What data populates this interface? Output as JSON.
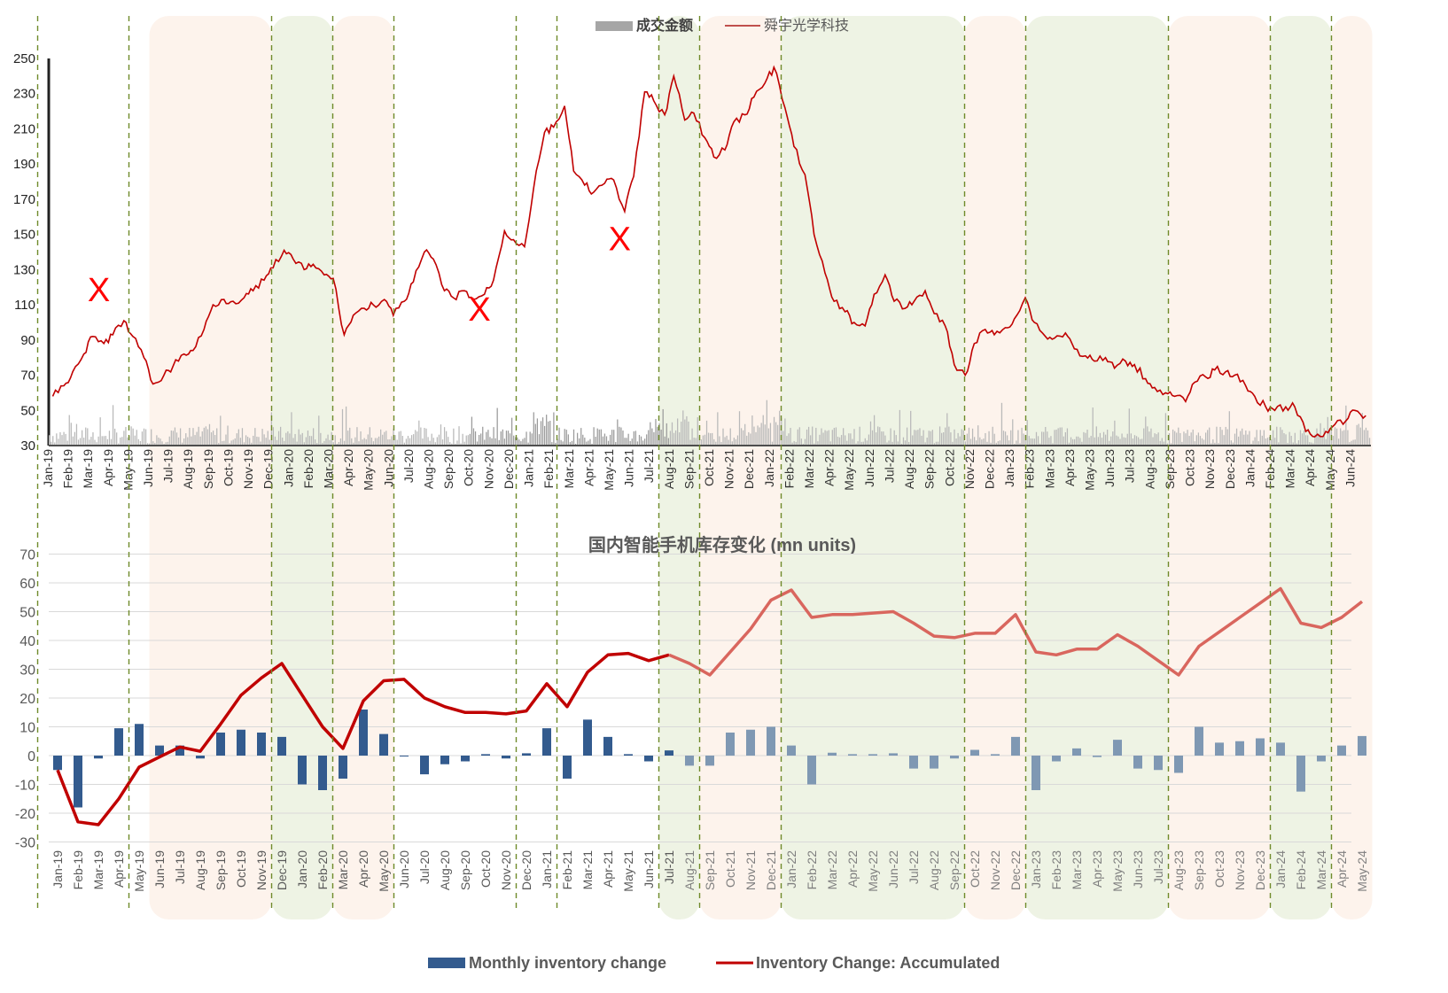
{
  "chart_data": [
    {
      "type": "line",
      "legend": {
        "placement": "top-center",
        "entries": [
          {
            "label": "成交金额",
            "kind": "bar",
            "color": "#a6a6a6"
          },
          {
            "label": "舜宇光学科技",
            "kind": "line",
            "color": "#c00000"
          }
        ]
      },
      "y_ticks": [
        30,
        50,
        70,
        90,
        110,
        130,
        150,
        170,
        190,
        210,
        230,
        250
      ],
      "ylim": [
        30,
        250
      ],
      "x_ticks": [
        "Jan-19",
        "Feb-19",
        "Mar-19",
        "Apr-19",
        "May-19",
        "Jun-19",
        "Jul-19",
        "Aug-19",
        "Sep-19",
        "Oct-19",
        "Nov-19",
        "Dec-19",
        "Jan-20",
        "Feb-20",
        "Mar-20",
        "Apr-20",
        "May-20",
        "Jun-20",
        "Jul-20",
        "Aug-20",
        "Sep-20",
        "Oct-20",
        "Nov-20",
        "Dec-20",
        "Jan-21",
        "Feb-21",
        "Mar-21",
        "Apr-21",
        "May-21",
        "Jun-21",
        "Jul-21",
        "Aug-21",
        "Sep-21",
        "Oct-21",
        "Nov-21",
        "Dec-21",
        "Jan-22",
        "Feb-22",
        "Mar-22",
        "Apr-22",
        "May-22",
        "Jun-22",
        "Jul-22",
        "Aug-22",
        "Sep-22",
        "Oct-22",
        "Nov-22",
        "Dec-22",
        "Jan-23",
        "Feb-23",
        "Mar-23",
        "Apr-23",
        "May-23",
        "Jun-23",
        "Jul-23",
        "Aug-23",
        "Sep-23",
        "Oct-23",
        "Nov-23",
        "Dec-23",
        "Jan-24",
        "Feb-24",
        "Mar-24",
        "Apr-24",
        "May-24",
        "Jun-24"
      ],
      "price_series": {
        "name": "舜宇光学科技",
        "color": "#c00000",
        "points": [
          [
            "Jan-19",
            58
          ],
          [
            "Jan-19",
            64
          ],
          [
            "Feb-19",
            72
          ],
          [
            "Feb-19",
            82
          ],
          [
            "Mar-19",
            92
          ],
          [
            "Mar-19",
            88
          ],
          [
            "Apr-19",
            93
          ],
          [
            "Apr-19",
            101
          ],
          [
            "May-19",
            92
          ],
          [
            "May-19",
            80
          ],
          [
            "Jun-19",
            65
          ],
          [
            "Jun-19",
            70
          ],
          [
            "Jul-19",
            75
          ],
          [
            "Jul-19",
            82
          ],
          [
            "Aug-19",
            84
          ],
          [
            "Aug-19",
            96
          ],
          [
            "Sep-19",
            110
          ],
          [
            "Sep-19",
            113
          ],
          [
            "Oct-19",
            112
          ],
          [
            "Oct-19",
            114
          ],
          [
            "Nov-19",
            118
          ],
          [
            "Nov-19",
            124
          ],
          [
            "Dec-19",
            131
          ],
          [
            "Dec-19",
            141
          ],
          [
            "Jan-20",
            136
          ],
          [
            "Jan-20",
            130
          ],
          [
            "Feb-20",
            133
          ],
          [
            "Feb-20",
            127
          ],
          [
            "Mar-20",
            125
          ],
          [
            "Mar-20",
            93
          ],
          [
            "Apr-20",
            104
          ],
          [
            "Apr-20",
            108
          ],
          [
            "May-20",
            110
          ],
          [
            "May-20",
            113
          ],
          [
            "Jun-20",
            104
          ],
          [
            "Jun-20",
            112
          ],
          [
            "Jul-20",
            123
          ],
          [
            "Jul-20",
            140
          ],
          [
            "Aug-20",
            136
          ],
          [
            "Aug-20",
            118
          ],
          [
            "Sep-20",
            114
          ],
          [
            "Sep-20",
            118
          ],
          [
            "Oct-20",
            113
          ],
          [
            "Oct-20",
            116
          ],
          [
            "Nov-20",
            124
          ],
          [
            "Nov-20",
            152
          ],
          [
            "Dec-20",
            147
          ],
          [
            "Dec-20",
            143
          ],
          [
            "Jan-21",
            176
          ],
          [
            "Jan-21",
            208
          ],
          [
            "Feb-21",
            211
          ],
          [
            "Feb-21",
            223
          ],
          [
            "Mar-21",
            186
          ],
          [
            "Mar-21",
            178
          ],
          [
            "Apr-21",
            174
          ],
          [
            "Apr-21",
            179
          ],
          [
            "May-21",
            181
          ],
          [
            "May-21",
            163
          ],
          [
            "Jun-21",
            183
          ],
          [
            "Jun-21",
            231
          ],
          [
            "Jul-21",
            226
          ],
          [
            "Jul-21",
            218
          ],
          [
            "Aug-21",
            240
          ],
          [
            "Aug-21",
            215
          ],
          [
            "Sep-21",
            219
          ],
          [
            "Sep-21",
            205
          ],
          [
            "Oct-21",
            194
          ],
          [
            "Oct-21",
            198
          ],
          [
            "Nov-21",
            214
          ],
          [
            "Nov-21",
            218
          ],
          [
            "Dec-21",
            228
          ],
          [
            "Dec-21",
            236
          ],
          [
            "Jan-22",
            245
          ],
          [
            "Jan-22",
            222
          ],
          [
            "Feb-22",
            200
          ],
          [
            "Feb-22",
            184
          ],
          [
            "Mar-22",
            150
          ],
          [
            "Mar-22",
            128
          ],
          [
            "Apr-22",
            112
          ],
          [
            "Apr-22",
            106
          ],
          [
            "May-22",
            100
          ],
          [
            "May-22",
            98
          ],
          [
            "Jun-22",
            116
          ],
          [
            "Jun-22",
            127
          ],
          [
            "Jul-22",
            112
          ],
          [
            "Jul-22",
            108
          ],
          [
            "Aug-22",
            112
          ],
          [
            "Aug-22",
            118
          ],
          [
            "Sep-22",
            105
          ],
          [
            "Sep-22",
            98
          ],
          [
            "Oct-22",
            76
          ],
          [
            "Oct-22",
            70
          ],
          [
            "Nov-22",
            88
          ],
          [
            "Nov-22",
            96
          ],
          [
            "Dec-22",
            93
          ],
          [
            "Dec-22",
            97
          ],
          [
            "Jan-23",
            102
          ],
          [
            "Jan-23",
            114
          ],
          [
            "Feb-23",
            100
          ],
          [
            "Feb-23",
            92
          ],
          [
            "Mar-23",
            91
          ],
          [
            "Mar-23",
            94
          ],
          [
            "Apr-23",
            85
          ],
          [
            "Apr-23",
            81
          ],
          [
            "May-23",
            78
          ],
          [
            "May-23",
            80
          ],
          [
            "Jun-23",
            74
          ],
          [
            "Jun-23",
            78
          ],
          [
            "Jul-23",
            76
          ],
          [
            "Jul-23",
            68
          ],
          [
            "Aug-23",
            63
          ],
          [
            "Aug-23",
            60
          ],
          [
            "Sep-23",
            58
          ],
          [
            "Sep-23",
            55
          ],
          [
            "Oct-23",
            66
          ],
          [
            "Oct-23",
            69
          ],
          [
            "Nov-23",
            73
          ],
          [
            "Nov-23",
            72
          ],
          [
            "Dec-23",
            70
          ],
          [
            "Dec-23",
            64
          ],
          [
            "Jan-24",
            58
          ],
          [
            "Jan-24",
            52
          ],
          [
            "Feb-24",
            50
          ],
          [
            "Feb-24",
            52
          ],
          [
            "Mar-24",
            52
          ],
          [
            "Mar-24",
            38
          ],
          [
            "Apr-24",
            35
          ],
          [
            "Apr-24",
            38
          ],
          [
            "May-24",
            42
          ],
          [
            "May-24",
            44
          ],
          [
            "Jun-24",
            50
          ],
          [
            "Jun-24",
            47
          ]
        ]
      },
      "volume_series": {
        "name": "成交金额",
        "color": "#a6a6a6",
        "typical_height": [
          30,
          46
        ],
        "note_peak_months": [
          "Jan-21",
          "Jul-21",
          "Aug-21",
          "Dec-21",
          "Jan-22"
        ]
      },
      "annotations": [
        {
          "text": "X",
          "x": "Mar-19",
          "y": 112,
          "color": "#ff0000"
        },
        {
          "text": "X",
          "x": "Oct-20",
          "y": 101,
          "color": "#ff0000"
        },
        {
          "text": "X",
          "x": "May-21",
          "y": 141,
          "color": "#ff0000"
        }
      ]
    },
    {
      "type": "bar",
      "title": "国内智能手机库存变化 (mn units)",
      "ylim": [
        -30,
        70
      ],
      "y_ticks": [
        -30,
        -20,
        -10,
        0,
        10,
        20,
        30,
        40,
        50,
        60,
        70
      ],
      "categories": [
        "Jan-19",
        "Feb-19",
        "Mar-19",
        "Apr-19",
        "May-19",
        "Jun-19",
        "Jul-19",
        "Aug-19",
        "Sep-19",
        "Oct-19",
        "Nov-19",
        "Dec-19",
        "Jan-20",
        "Feb-20",
        "Mar-20",
        "Apr-20",
        "May-20",
        "Jun-20",
        "Jul-20",
        "Aug-20",
        "Sep-20",
        "Oct-20",
        "Nov-20",
        "Dec-20",
        "Jan-21",
        "Feb-21",
        "Mar-21",
        "Apr-21",
        "May-21",
        "Jun-21",
        "Jul-21",
        "Aug-21",
        "Sep-21",
        "Oct-21",
        "Nov-21",
        "Dec-21",
        "Jan-22",
        "Feb-22",
        "Mar-22",
        "Apr-22",
        "May-22",
        "Jun-22",
        "Jul-22",
        "Aug-22",
        "Sep-22",
        "Oct-22",
        "Nov-22",
        "Dec-22",
        "Jan-23",
        "Feb-23",
        "Mar-23",
        "Apr-23",
        "May-23",
        "Jun-23",
        "Jul-23",
        "Aug-23",
        "Sep-23",
        "Oct-23",
        "Nov-23",
        "Dec-23",
        "Jan-24",
        "Feb-24",
        "Mar-24",
        "Apr-24",
        "May-24"
      ],
      "series": [
        {
          "name": "Monthly inventory change",
          "color": "#335b8e",
          "values": [
            -5,
            -18,
            -1,
            9.5,
            11,
            3.5,
            3.5,
            -1,
            8,
            9,
            8,
            6.5,
            -10,
            -12,
            -8,
            16,
            7.5,
            0,
            -6.5,
            -3,
            -2,
            0.5,
            -1,
            0.8,
            9.5,
            -8,
            12.5,
            6.5,
            0.5,
            -2,
            1.8,
            -3.5,
            -3.5,
            8,
            9,
            10,
            3.5,
            -10,
            1,
            0.5,
            0.5,
            0.8,
            -4.5,
            -4.5,
            -1,
            2,
            0.5,
            6.5,
            -12,
            -2,
            2.5,
            -0.5,
            5.5,
            -4.5,
            -5,
            -6,
            10,
            4.5,
            5,
            6,
            4.5,
            -12.5,
            -2,
            3.5,
            6.8
          ]
        },
        {
          "name": "Inventory Change: Accumulated",
          "color": "#c00000",
          "values": [
            -5,
            -23,
            -24,
            -15,
            -4,
            -0.5,
            3,
            1.5,
            11,
            21,
            27,
            32,
            21,
            10,
            2.5,
            19,
            26,
            26.5,
            20,
            17,
            15,
            15,
            14.5,
            15.5,
            25,
            17,
            29,
            35,
            35.5,
            33,
            35,
            32,
            28,
            36,
            44,
            54,
            57.5,
            48,
            49,
            49,
            49.5,
            50,
            46,
            41.5,
            41,
            42.5,
            42.5,
            49,
            36,
            35,
            37,
            37,
            42,
            38,
            33,
            28,
            38,
            43,
            48,
            53,
            58,
            46,
            44.5,
            48,
            53.5
          ]
        }
      ],
      "shaded_regions": [
        {
          "from": "Jun-19",
          "to": "Dec-19",
          "color": "#fdf3ec"
        },
        {
          "from": "Dec-19",
          "to": "Mar-20",
          "color": "#eef3e4"
        },
        {
          "from": "Mar-20",
          "to": "Jun-20",
          "color": "#fdf3ec"
        },
        {
          "from": "Jul-21",
          "to": "Sep-21",
          "color": "#eef3e4"
        },
        {
          "from": "Sep-21",
          "to": "Jan-22",
          "color": "#fdf3ec"
        },
        {
          "from": "Jan-22",
          "to": "Oct-22",
          "color": "#eef3e4"
        },
        {
          "from": "Oct-22",
          "to": "Jan-23",
          "color": "#fdf3ec"
        },
        {
          "from": "Jan-23",
          "to": "Aug-23",
          "color": "#eef3e4"
        },
        {
          "from": "Aug-23",
          "to": "Jan-24",
          "color": "#fdf3ec"
        },
        {
          "from": "Jan-24",
          "to": "Apr-24",
          "color": "#eef3e4"
        },
        {
          "from": "Apr-24",
          "to": "May-24",
          "color": "#fdf3ec"
        }
      ],
      "boundaries": [
        "Jan-19",
        "May-19",
        "Dec-19",
        "Mar-20",
        "Jun-20",
        "Dec-20",
        "Feb-21",
        "Jul-21",
        "Sep-21",
        "Jan-22",
        "Oct-22",
        "Jan-23",
        "Aug-23",
        "Jan-24",
        "Apr-24"
      ],
      "legend": {
        "placement": "bottom-center"
      }
    }
  ]
}
